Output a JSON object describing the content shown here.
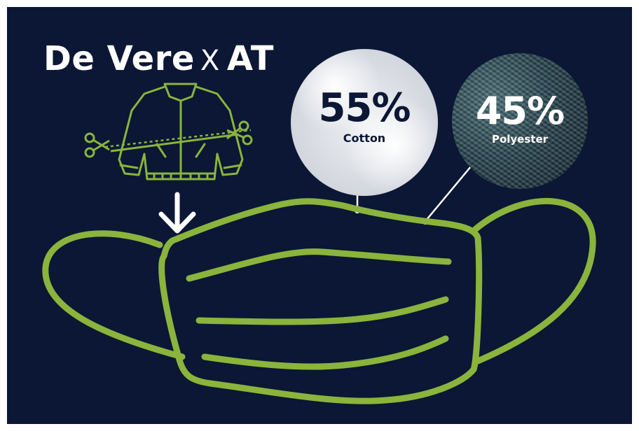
{
  "title": {
    "left": "De Vere",
    "separator": "X",
    "right": "AT"
  },
  "cotton": {
    "percent": "55%",
    "label": "Cotton"
  },
  "polyester": {
    "percent": "45%",
    "label": "Polyester"
  },
  "colors": {
    "background": "#0b1734",
    "accent_green": "#8ab43c",
    "text_light": "#ffffff",
    "text_dark": "#0b1734"
  },
  "icons": [
    "jacket-icon",
    "scissors-icon",
    "down-arrow-icon",
    "face-mask-illustration"
  ]
}
